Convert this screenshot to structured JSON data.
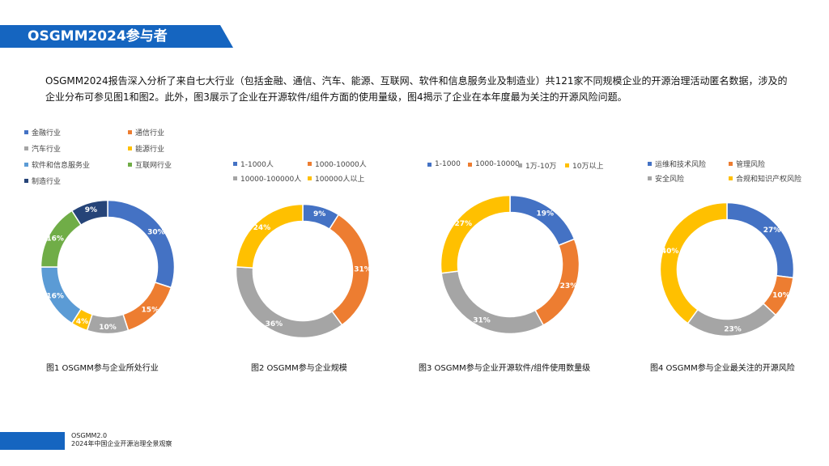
{
  "page": {
    "title": "OSGMM2024参与者",
    "intro": "OSGMM2024报告深入分析了来自七大行业（包括金融、通信、汽车、能源、互联网、软件和信息服务业及制造业）共121家不同规模企业的开源治理活动匿名数据，涉及的企业分布可参见图1和图2。此外，图3展示了企业在开源软件/组件方面的使用量级，图4揭示了企业在本年度最为关注的开源风险问题。",
    "footer_line1": "OSGMM2.0",
    "footer_line2": "2024年中国企业开源治理全景观察",
    "brand_color": "#1565c0"
  },
  "chart_data": [
    {
      "type": "pie",
      "donut": true,
      "caption": "图1 OSGMM参与企业所处行业",
      "categories": [
        "金融行业",
        "通信行业",
        "汽车行业",
        "能源行业",
        "软件和信息服务业",
        "互联网行业",
        "制造行业"
      ],
      "values": [
        30,
        15,
        10,
        4,
        16,
        16,
        9
      ],
      "slice_order": [
        0,
        1,
        2,
        3,
        4,
        5,
        6
      ],
      "labels": [
        "30%",
        "15%",
        "10%",
        "4%",
        "16%",
        "16%",
        "9%"
      ],
      "colors": [
        "#4472c4",
        "#ed7d31",
        "#a5a5a5",
        "#ffc000",
        "#5b9bd5",
        "#70ad47",
        "#264478"
      ],
      "legend_placement": "top-left"
    },
    {
      "type": "pie",
      "donut": true,
      "caption": "图2 OSGMM参与企业规模",
      "categories": [
        "1-1000人",
        "1000-10000人",
        "10000-100000人",
        "100000人以上"
      ],
      "values": [
        9,
        31,
        36,
        24
      ],
      "labels": [
        "9%",
        "31%",
        "36%",
        "24%"
      ],
      "colors": [
        "#4472c4",
        "#ed7d31",
        "#a5a5a5",
        "#ffc000"
      ],
      "legend_placement": "top"
    },
    {
      "type": "pie",
      "donut": true,
      "caption": "图3 OSGMM参与企业开源软件/组件使用数量级",
      "categories": [
        "1-1000",
        "1000-10000",
        "1万-10万",
        "10万以上"
      ],
      "values": [
        19,
        23,
        31,
        27
      ],
      "labels": [
        "19%",
        "23%",
        "31%",
        "27%"
      ],
      "colors": [
        "#4472c4",
        "#ed7d31",
        "#a5a5a5",
        "#ffc000"
      ],
      "legend_placement": "top"
    },
    {
      "type": "pie",
      "donut": true,
      "caption": "图4 OSGMM参与企业最关注的开源风险",
      "categories": [
        "运维和技术风险",
        "管理风险",
        "安全风险",
        "合规和知识产权风险"
      ],
      "values": [
        27,
        10,
        23,
        40
      ],
      "labels": [
        "27%",
        "10%",
        "23%",
        "40%"
      ],
      "colors": [
        "#4472c4",
        "#ed7d31",
        "#a5a5a5",
        "#ffc000"
      ],
      "legend_placement": "top"
    }
  ]
}
